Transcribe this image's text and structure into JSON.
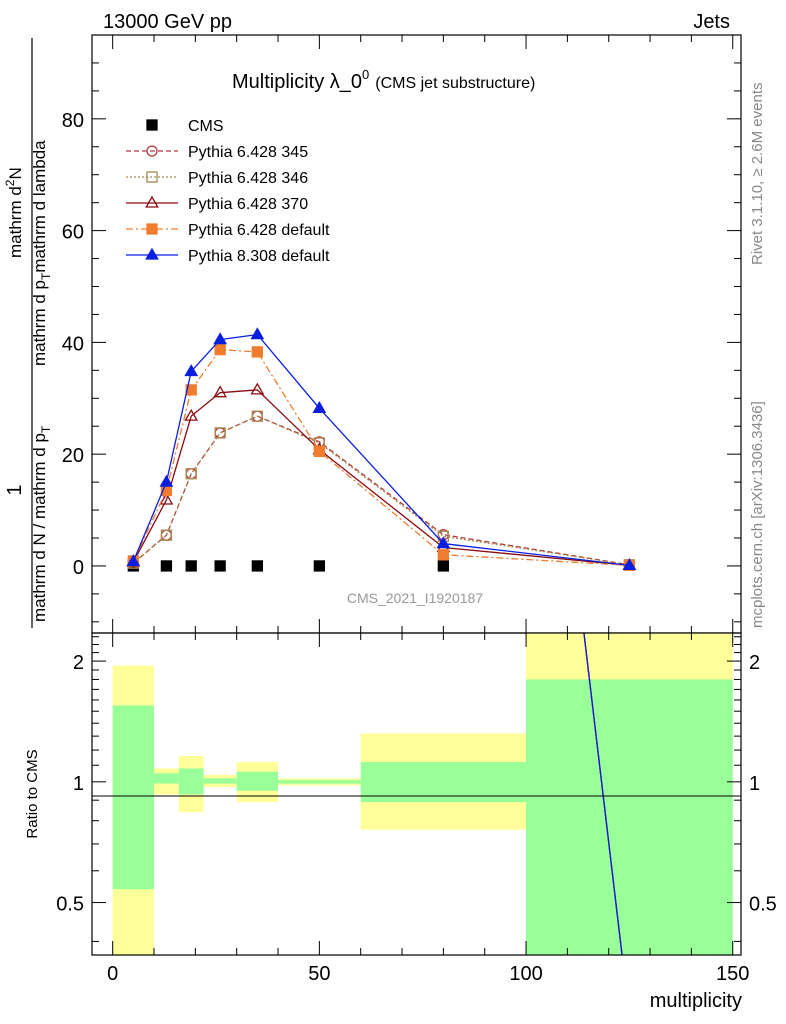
{
  "header": {
    "left": "13000 GeV pp",
    "right": "Jets"
  },
  "side_labels": {
    "rivet": "Rivet 3.1.10, ≥ 2.6M events",
    "mcplots": "mcplots.cern.ch [arXiv:1306.3436]"
  },
  "colors": {
    "cms": "#000000",
    "pythia6_345": "#b5393d",
    "pythia6_346": "#a58a4f",
    "pythia6_370": "#8b0a12",
    "pythia6_default": "#f07c2e",
    "pythia8_default": "#0a1ee0",
    "band_inner": "#99ff99",
    "band_outer": "#ffff99"
  },
  "chart_data": [
    {
      "type": "line",
      "title": "Multiplicity λ_0",
      "title_superscript": "0",
      "subtitle": "(CMS jet substructure)",
      "analysis_label": "CMS_2021_I1920187",
      "ylabel": {
        "numerator": "1",
        "denominator": "mathrm d N / mathrm d p",
        "denominator_sub": "T",
        "derivative": "mathrm d",
        "derivative_sup": "2",
        "derivative_N": "N",
        "deriv_den": "mathrm d p",
        "deriv_den_sub": "T",
        "deriv_den_tail": "mathrm d lambda"
      },
      "xlim": [
        -5,
        152
      ],
      "ylim": [
        -12,
        95
      ],
      "yticks": [
        0,
        20,
        40,
        60,
        80
      ],
      "legend_position": "top-left",
      "series": [
        {
          "name": "CMS",
          "style": "square",
          "x": [
            5,
            13,
            19,
            26,
            35,
            50,
            80
          ],
          "y": [
            0,
            0,
            0,
            0,
            0,
            0,
            0
          ]
        },
        {
          "name": "Pythia 6.428 345",
          "style": "open-circle-dashed",
          "x": [
            5,
            13,
            19,
            26,
            35,
            50,
            80,
            125
          ],
          "y": [
            0.5,
            5.5,
            16.5,
            23.8,
            26.8,
            22.2,
            5.6,
            0.2
          ]
        },
        {
          "name": "Pythia 6.428 346",
          "style": "open-square-dotted",
          "x": [
            5,
            13,
            19,
            26,
            35,
            50,
            80,
            125
          ],
          "y": [
            0.5,
            5.5,
            16.5,
            23.8,
            26.8,
            22.0,
            5.3,
            0.2
          ]
        },
        {
          "name": "Pythia 6.428 370",
          "style": "open-triangle-solid",
          "x": [
            5,
            13,
            19,
            26,
            35,
            50,
            80,
            125
          ],
          "y": [
            0.7,
            11.8,
            26.8,
            31.0,
            31.5,
            20.8,
            3.3,
            0.1
          ]
        },
        {
          "name": "Pythia 6.428 default",
          "style": "filled-square-dashdot",
          "x": [
            5,
            13,
            19,
            26,
            35,
            50,
            80,
            125
          ],
          "y": [
            0.9,
            13.5,
            31.5,
            38.7,
            38.3,
            20.5,
            2.0,
            0.1
          ]
        },
        {
          "name": "Pythia 8.308 default",
          "style": "filled-triangle-solid",
          "x": [
            5,
            13,
            19,
            26,
            35,
            50,
            80,
            125
          ],
          "y": [
            0.8,
            15.0,
            34.8,
            40.5,
            41.4,
            28.2,
            4.0,
            0.1
          ]
        }
      ]
    },
    {
      "type": "area",
      "ylabel": "Ratio to CMS",
      "xlabel": "multiplicity",
      "xlim": [
        -5,
        152
      ],
      "ylim": [
        0.37,
        2.35
      ],
      "yscale": "log",
      "yticks": [
        0.5,
        1,
        2
      ],
      "xticks": [
        0,
        50,
        100,
        150
      ],
      "bands": [
        {
          "x0": 0,
          "x1": 10,
          "inner": [
            0.54,
            1.55
          ],
          "outer": [
            0.1,
            1.95
          ]
        },
        {
          "x0": 10,
          "x1": 16,
          "inner": [
            0.99,
            1.05
          ],
          "outer": [
            0.93,
            1.08
          ]
        },
        {
          "x0": 16,
          "x1": 22,
          "inner": [
            0.93,
            1.08
          ],
          "outer": [
            0.84,
            1.16
          ]
        },
        {
          "x0": 22,
          "x1": 30,
          "inner": [
            0.99,
            1.02
          ],
          "outer": [
            0.97,
            1.04
          ]
        },
        {
          "x0": 30,
          "x1": 40,
          "inner": [
            0.95,
            1.06
          ],
          "outer": [
            0.89,
            1.12
          ]
        },
        {
          "x0": 40,
          "x1": 60,
          "inner": [
            0.99,
            1.01
          ],
          "outer": [
            0.98,
            1.02
          ]
        },
        {
          "x0": 60,
          "x1": 100,
          "inner": [
            0.89,
            1.12
          ],
          "outer": [
            0.76,
            1.32
          ]
        },
        {
          "x0": 100,
          "x1": 150,
          "inner": [
            0.1,
            1.8
          ],
          "outer": [
            0.1,
            3.0
          ]
        }
      ],
      "ratio_series": [
        {
          "name": "Pythia 6.428 345",
          "x": [
            113.5,
            123.5
          ],
          "y": [
            2.6,
            0.35
          ]
        },
        {
          "name": "Pythia 6.428 346",
          "x": [
            113.5,
            123.5
          ],
          "y": [
            2.6,
            0.35
          ]
        },
        {
          "name": "Pythia 6.428 370",
          "x": [
            113.5,
            123.5
          ],
          "y": [
            2.6,
            0.35
          ]
        },
        {
          "name": "Pythia 6.428 default",
          "x": [
            113.5,
            123.5
          ],
          "y": [
            2.6,
            0.35
          ]
        },
        {
          "name": "Pythia 8.308 default",
          "x": [
            113.5,
            123.5
          ],
          "y": [
            2.6,
            0.35
          ]
        }
      ]
    }
  ]
}
